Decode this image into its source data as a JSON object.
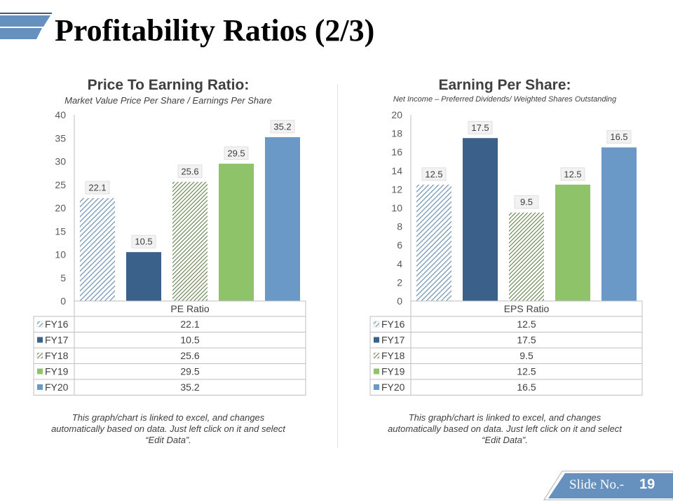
{
  "page": {
    "title": "Profitability Ratios (2/3)",
    "slide_label": "Slide No.-",
    "slide_number": "19"
  },
  "colors": {
    "navy": "#3a6189",
    "green": "#8fc36a",
    "blue": "#6b99c7",
    "hatch_blue": "#6b8fb0",
    "hatch_green": "#5f7f49",
    "accent": "#6690bd",
    "gridline": "#d9d9d9",
    "text": "#404040"
  },
  "chart_data": [
    {
      "type": "bar",
      "title": "Price To Earning Ratio:",
      "subtitle": "Market Value Price Per Share / Earnings Per Share",
      "category_label": "PE Ratio",
      "categories": [
        "PE Ratio"
      ],
      "series": [
        {
          "name": "FY16",
          "value": 22.1,
          "fill": "hatch-blue",
          "legend_icon": "hatch-blue-icon"
        },
        {
          "name": "FY17",
          "value": 10.5,
          "fill": "solid-navy",
          "legend_icon": "navy-square-icon"
        },
        {
          "name": "FY18",
          "value": 25.6,
          "fill": "hatch-green",
          "legend_icon": "hatch-green-icon"
        },
        {
          "name": "FY19",
          "value": 29.5,
          "fill": "solid-green",
          "legend_icon": "green-square-icon"
        },
        {
          "name": "FY20",
          "value": 35.2,
          "fill": "solid-blue",
          "legend_icon": "blue-square-icon"
        }
      ],
      "ylim": [
        0,
        40
      ],
      "yticks": [
        0,
        5,
        10,
        15,
        20,
        25,
        30,
        35,
        40
      ],
      "grid": false,
      "data_table": true,
      "note": "This graph/chart is linked to excel, and changes automatically based on data. Just left click on it and select “Edit Data”."
    },
    {
      "type": "bar",
      "title": "Earning Per Share:",
      "subtitle": "Net Income – Preferred Dividends/ Weighted Shares Outstanding",
      "category_label": "EPS Ratio",
      "categories": [
        "EPS Ratio"
      ],
      "series": [
        {
          "name": "FY16",
          "value": 12.5,
          "fill": "hatch-blue",
          "legend_icon": "hatch-blue-icon"
        },
        {
          "name": "FY17",
          "value": 17.5,
          "fill": "solid-navy",
          "legend_icon": "navy-square-icon"
        },
        {
          "name": "FY18",
          "value": 9.5,
          "fill": "hatch-green",
          "legend_icon": "hatch-green-icon"
        },
        {
          "name": "FY19",
          "value": 12.5,
          "fill": "solid-green",
          "legend_icon": "green-square-icon"
        },
        {
          "name": "FY20",
          "value": 16.5,
          "fill": "solid-blue",
          "legend_icon": "blue-square-icon"
        }
      ],
      "ylim": [
        0,
        20
      ],
      "yticks": [
        0,
        2,
        4,
        6,
        8,
        10,
        12,
        14,
        16,
        18,
        20
      ],
      "grid": false,
      "data_table": true,
      "note": "This graph/chart is linked to excel, and changes automatically based on data. Just left click on it and select “Edit Data”."
    }
  ]
}
